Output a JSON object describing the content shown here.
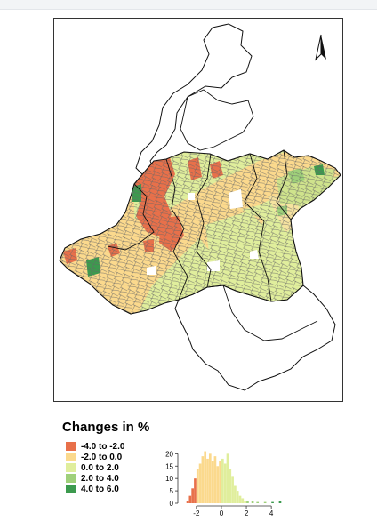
{
  "legend": {
    "title": "Changes in %",
    "items": [
      {
        "label": "-4.0 to -2.0",
        "color": "#e8704a"
      },
      {
        "label": "-2.0 to 0.0",
        "color": "#fbd98d"
      },
      {
        "label": "0.0 to 2.0",
        "color": "#e0ee9c"
      },
      {
        "label": "2.0 to 4.0",
        "color": "#9fd07a"
      },
      {
        "label": "4.0 to 6.0",
        "color": "#3c9a4e"
      }
    ]
  },
  "north_arrow": {
    "icon": "north-arrow-icon"
  },
  "histogram": {
    "y_ticks": [
      "0",
      "5",
      "10",
      "15",
      "20"
    ],
    "x_ticks": [
      "-2",
      "0",
      "2",
      "4"
    ],
    "ylim": [
      0,
      23
    ],
    "xlim": [
      -3.2,
      5.2
    ],
    "bins": [
      {
        "x": -2.7,
        "v": 1
      },
      {
        "x": -2.5,
        "v": 3
      },
      {
        "x": -2.3,
        "v": 6
      },
      {
        "x": -2.1,
        "v": 10
      },
      {
        "x": -1.9,
        "v": 14
      },
      {
        "x": -1.7,
        "v": 16
      },
      {
        "x": -1.5,
        "v": 19
      },
      {
        "x": -1.3,
        "v": 21
      },
      {
        "x": -1.1,
        "v": 18
      },
      {
        "x": -0.9,
        "v": 20
      },
      {
        "x": -0.7,
        "v": 17
      },
      {
        "x": -0.5,
        "v": 19
      },
      {
        "x": -0.3,
        "v": 15
      },
      {
        "x": -0.1,
        "v": 17
      },
      {
        "x": 0.1,
        "v": 18
      },
      {
        "x": 0.3,
        "v": 16
      },
      {
        "x": 0.5,
        "v": 20
      },
      {
        "x": 0.7,
        "v": 14
      },
      {
        "x": 0.9,
        "v": 11
      },
      {
        "x": 1.1,
        "v": 7
      },
      {
        "x": 1.3,
        "v": 5
      },
      {
        "x": 1.5,
        "v": 3
      },
      {
        "x": 1.7,
        "v": 2
      },
      {
        "x": 1.9,
        "v": 1
      },
      {
        "x": 2.1,
        "v": 1
      },
      {
        "x": 2.5,
        "v": 1
      },
      {
        "x": 2.9,
        "v": 0.5
      },
      {
        "x": 3.5,
        "v": 0.5
      },
      {
        "x": 4.1,
        "v": 0.5
      },
      {
        "x": 4.7,
        "v": 1
      }
    ]
  }
}
